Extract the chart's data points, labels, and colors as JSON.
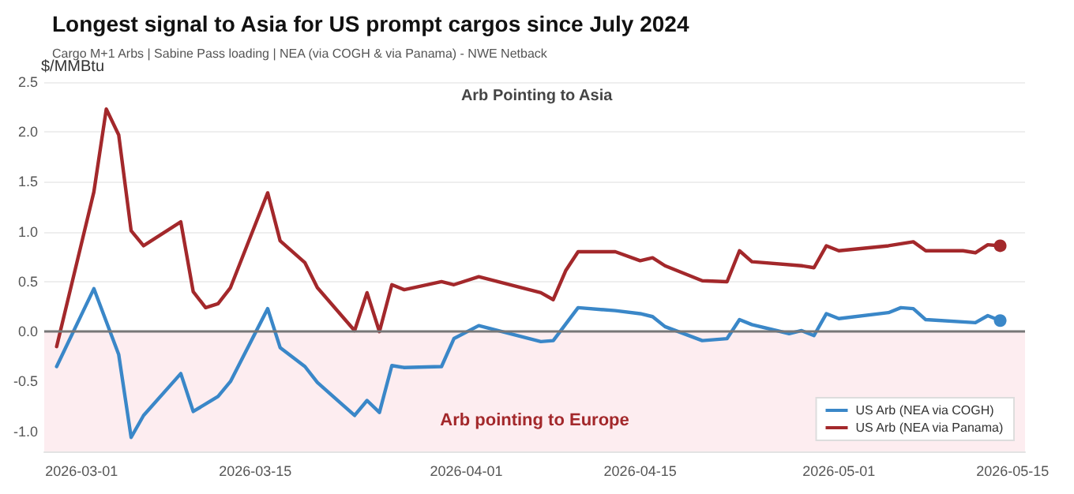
{
  "chart_data": {
    "type": "line",
    "title": "Longest signal to Asia for US prompt cargos since July 2024",
    "subtitle": "Cargo M+1 Arbs | Sabine Pass loading | NEA (via COGH & via Panama) - NWE Netback",
    "ylabel": "$/MMBtu",
    "annotations": [
      "Arb Pointing to Asia"
    ],
    "series": [
      {
        "name": "US Arb (NEA via COGH)",
        "color": "#3a87c8",
        "x": [
          "2026-02-27",
          "2026-03-02",
          "2026-03-04",
          "2026-03-05",
          "2026-03-06",
          "2026-03-09",
          "2026-03-10",
          "2026-03-12",
          "2026-03-13",
          "2026-03-16",
          "2026-03-17",
          "2026-03-19",
          "2026-03-20",
          "2026-03-23",
          "2026-03-24",
          "2026-03-25",
          "2026-03-26",
          "2026-03-27",
          "2026-03-30",
          "2026-03-31",
          "2026-04-02",
          "2026-04-07",
          "2026-04-08",
          "2026-04-10",
          "2026-04-13",
          "2026-04-15",
          "2026-04-16",
          "2026-04-17",
          "2026-04-20",
          "2026-04-21",
          "2026-04-22",
          "2026-04-23",
          "2026-04-24",
          "2026-04-27",
          "2026-04-28",
          "2026-04-29",
          "2026-04-30",
          "2026-05-01",
          "2026-05-05",
          "2026-05-06",
          "2026-05-07",
          "2026-05-08",
          "2026-05-12",
          "2026-05-13",
          "2026-05-14"
        ],
        "values": [
          -0.35,
          0.43,
          -0.23,
          -1.06,
          -0.84,
          -0.42,
          -0.8,
          -0.65,
          -0.5,
          0.23,
          -0.16,
          -0.35,
          -0.51,
          -0.84,
          -0.69,
          -0.81,
          -0.34,
          -0.36,
          -0.35,
          -0.07,
          0.06,
          -0.1,
          -0.09,
          0.24,
          0.21,
          0.18,
          0.15,
          0.05,
          -0.09,
          -0.08,
          -0.07,
          0.12,
          0.07,
          -0.02,
          0.01,
          -0.04,
          0.18,
          0.13,
          0.19,
          0.24,
          0.23,
          0.12,
          0.09,
          0.16,
          0.11
        ]
      },
      {
        "name": "US Arb (NEA via Panama)",
        "color": "#a3282b",
        "x": [
          "2026-02-27",
          "2026-03-02",
          "2026-03-03",
          "2026-03-04",
          "2026-03-05",
          "2026-03-06",
          "2026-03-09",
          "2026-03-10",
          "2026-03-11",
          "2026-03-12",
          "2026-03-13",
          "2026-03-16",
          "2026-03-17",
          "2026-03-19",
          "2026-03-20",
          "2026-03-23",
          "2026-03-24",
          "2026-03-25",
          "2026-03-26",
          "2026-03-27",
          "2026-03-30",
          "2026-03-31",
          "2026-04-02",
          "2026-04-07",
          "2026-04-08",
          "2026-04-09",
          "2026-04-10",
          "2026-04-13",
          "2026-04-15",
          "2026-04-16",
          "2026-04-17",
          "2026-04-20",
          "2026-04-22",
          "2026-04-23",
          "2026-04-24",
          "2026-04-28",
          "2026-04-29",
          "2026-04-30",
          "2026-05-01",
          "2026-05-05",
          "2026-05-07",
          "2026-05-08",
          "2026-05-11",
          "2026-05-12",
          "2026-05-13",
          "2026-05-14"
        ],
        "values": [
          -0.15,
          1.4,
          2.23,
          1.97,
          1.01,
          0.86,
          1.1,
          0.4,
          0.24,
          0.28,
          0.44,
          1.39,
          0.91,
          0.69,
          0.44,
          0.01,
          0.39,
          0.0,
          0.47,
          0.42,
          0.5,
          0.47,
          0.55,
          0.39,
          0.32,
          0.61,
          0.8,
          0.8,
          0.71,
          0.74,
          0.66,
          0.51,
          0.5,
          0.81,
          0.7,
          0.66,
          0.64,
          0.86,
          0.81,
          0.86,
          0.9,
          0.81,
          0.81,
          0.79,
          0.87,
          0.86
        ]
      }
    ],
    "xlim": [
      "2026-02-26",
      "2026-05-16"
    ],
    "xticks": [
      "2026-03-01",
      "2026-03-15",
      "2026-04-01",
      "2026-04-15",
      "2026-05-01",
      "2026-05-15"
    ],
    "ylim": [
      -1.2,
      2.5
    ],
    "yticks": [
      {
        "value": -1,
        "label": "-1.0"
      },
      {
        "value": -0.5,
        "label": "-0.5"
      },
      {
        "value": 0,
        "label": "0.0"
      },
      {
        "value": 0.5,
        "label": "0.5"
      },
      {
        "value": 1,
        "label": "1.0"
      },
      {
        "value": 1.5,
        "label": "1.5"
      },
      {
        "value": 2,
        "label": "2.0"
      },
      {
        "value": 2.5,
        "label": "2.5"
      }
    ],
    "ref_lines": [
      {
        "axis": "y",
        "value": 0,
        "label": null,
        "color": "#777777"
      }
    ],
    "bands": [
      {
        "axis": "y",
        "from": -1.2,
        "to": 0,
        "label": "Arb pointing to Europe",
        "color": "#fdedf0"
      }
    ],
    "grid": "y",
    "legend": "bottom right",
    "marker": "none",
    "line_style": "solid"
  }
}
